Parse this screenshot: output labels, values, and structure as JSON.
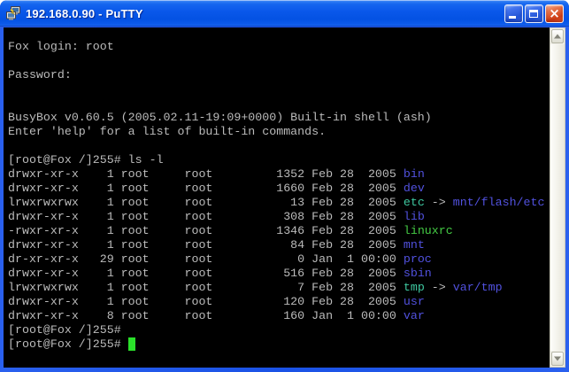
{
  "window": {
    "title": "192.168.0.90 - PuTTY"
  },
  "icons": {
    "app": "putty-terminals-icon",
    "minimize": "minimize-icon",
    "maximize": "maximize-icon",
    "close": "close-icon",
    "scroll_up": "chevron-up-icon",
    "scroll_down": "chevron-down-icon"
  },
  "colors": {
    "term-bg": "#000000",
    "term-fg": "#bbbbbb",
    "dir-blue": "#5151de",
    "link-cyan": "#3ec8a0",
    "exec-green": "#44cb44",
    "cursor-green": "#2ae02a",
    "border-blue": "#1a52e6",
    "titlebar-blue": "#0a58ea",
    "close-red": "#cf3f15"
  },
  "terminal": {
    "lines": [
      [
        {
          "t": "Fox login: root",
          "c": "fg"
        }
      ],
      [],
      [
        {
          "t": "Password:",
          "c": "fg"
        }
      ],
      [],
      [],
      [
        {
          "t": "BusyBox v0.60.5 (2005.02.11-19:09+0000) Built-in shell (ash)",
          "c": "fg"
        }
      ],
      [
        {
          "t": "Enter 'help' for a list of built-in commands.",
          "c": "fg"
        }
      ],
      [],
      [
        {
          "t": "[root@Fox /]255# ls -l",
          "c": "fg"
        }
      ],
      [
        {
          "t": "drwxr-xr-x    1 root     root         1352 Feb 28  2005 ",
          "c": "fg"
        },
        {
          "t": "bin",
          "c": "dir"
        }
      ],
      [
        {
          "t": "drwxr-xr-x    1 root     root         1660 Feb 28  2005 ",
          "c": "fg"
        },
        {
          "t": "dev",
          "c": "dir"
        }
      ],
      [
        {
          "t": "lrwxrwxrwx    1 root     root           13 Feb 28  2005 ",
          "c": "fg"
        },
        {
          "t": "etc",
          "c": "lnk"
        },
        {
          "t": " -> ",
          "c": "fg"
        },
        {
          "t": "mnt/flash/etc",
          "c": "dir"
        }
      ],
      [
        {
          "t": "drwxr-xr-x    1 root     root          308 Feb 28  2005 ",
          "c": "fg"
        },
        {
          "t": "lib",
          "c": "dir"
        }
      ],
      [
        {
          "t": "-rwxr-xr-x    1 root     root         1346 Feb 28  2005 ",
          "c": "fg"
        },
        {
          "t": "linuxrc",
          "c": "exe"
        }
      ],
      [
        {
          "t": "drwxr-xr-x    1 root     root           84 Feb 28  2005 ",
          "c": "fg"
        },
        {
          "t": "mnt",
          "c": "dir"
        }
      ],
      [
        {
          "t": "dr-xr-xr-x   29 root     root            0 Jan  1 00:00 ",
          "c": "fg"
        },
        {
          "t": "proc",
          "c": "dir"
        }
      ],
      [
        {
          "t": "drwxr-xr-x    1 root     root          516 Feb 28  2005 ",
          "c": "fg"
        },
        {
          "t": "sbin",
          "c": "dir"
        }
      ],
      [
        {
          "t": "lrwxrwxrwx    1 root     root            7 Feb 28  2005 ",
          "c": "fg"
        },
        {
          "t": "tmp",
          "c": "lnk"
        },
        {
          "t": " -> ",
          "c": "fg"
        },
        {
          "t": "var/tmp",
          "c": "dir"
        }
      ],
      [
        {
          "t": "drwxr-xr-x    1 root     root          120 Feb 28  2005 ",
          "c": "fg"
        },
        {
          "t": "usr",
          "c": "dir"
        }
      ],
      [
        {
          "t": "drwxr-xr-x    8 root     root          160 Jan  1 00:00 ",
          "c": "fg"
        },
        {
          "t": "var",
          "c": "dir"
        }
      ],
      [
        {
          "t": "[root@Fox /]255#",
          "c": "fg"
        }
      ],
      [
        {
          "t": "[root@Fox /]255# ",
          "c": "fg"
        },
        {
          "t": " ",
          "c": "cursor"
        }
      ]
    ]
  }
}
